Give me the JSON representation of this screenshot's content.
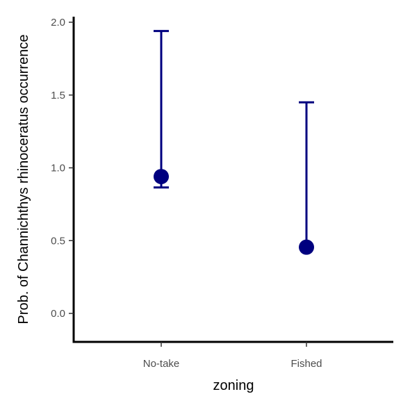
{
  "chart_data": {
    "type": "scatter",
    "title": "",
    "xlabel": "zoning",
    "ylabel": "Prob. of  Channichthys rhinoceratus  occurrence",
    "categories": [
      "No-take",
      "Fished"
    ],
    "series": [
      {
        "values": [
          0.94,
          0.455
        ],
        "lower": [
          0.865,
          0.455
        ],
        "upper": [
          1.94,
          1.45
        ]
      }
    ],
    "yticks": [
      "0.0",
      "0.5",
      "1.0",
      "1.5",
      "2.0"
    ],
    "ylim": [
      -0.2,
      2.05
    ],
    "grid": false,
    "color": "#00007f"
  }
}
